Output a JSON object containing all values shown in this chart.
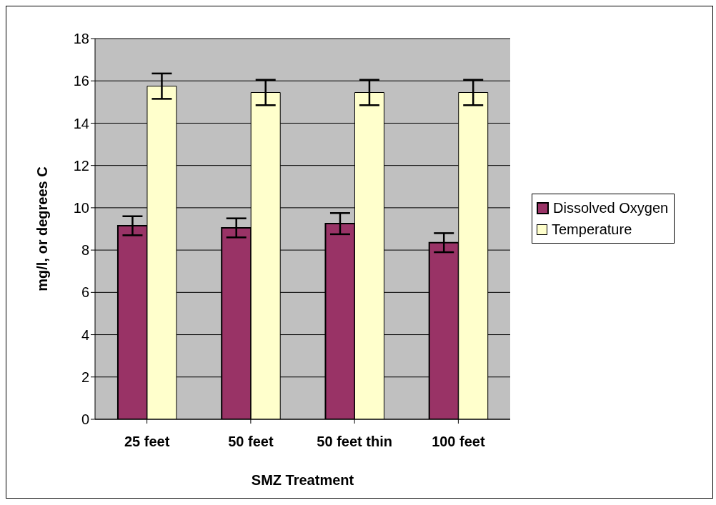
{
  "chart_data": {
    "type": "bar",
    "xlabel": "SMZ Treatment",
    "ylabel": "mg/l, or   degrees C",
    "categories": [
      "25 feet",
      "50 feet",
      "50 feet thin",
      "100 feet"
    ],
    "series": [
      {
        "name": "Dissolved Oxygen",
        "color": "#993366",
        "values": [
          9.15,
          9.05,
          9.25,
          8.35
        ],
        "errors": [
          0.45,
          0.45,
          0.5,
          0.45
        ]
      },
      {
        "name": "Temperature",
        "color": "#ffffcc",
        "values": [
          15.75,
          15.45,
          15.45,
          15.45
        ],
        "errors": [
          0.6,
          0.6,
          0.6,
          0.6
        ]
      }
    ],
    "ylim": [
      0,
      18
    ],
    "yticks": [
      0,
      2,
      4,
      6,
      8,
      10,
      12,
      14,
      16,
      18
    ],
    "grid": "y",
    "legend": "right"
  }
}
